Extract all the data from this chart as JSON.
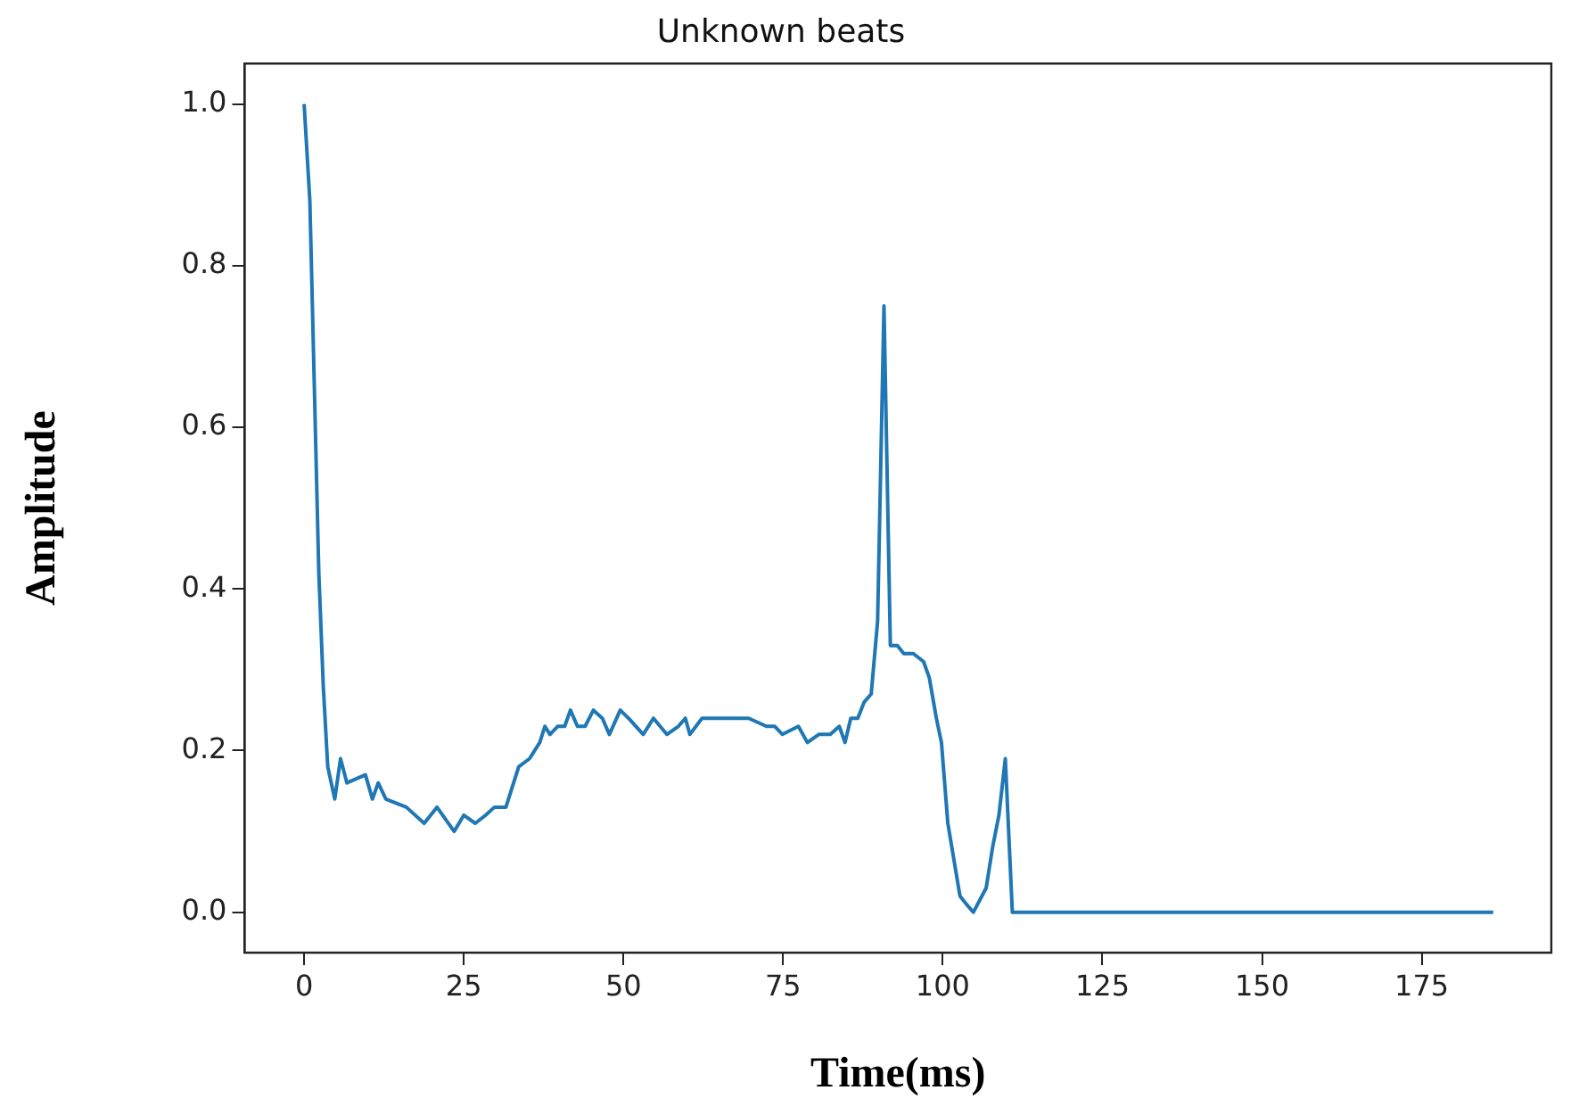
{
  "chart_data": {
    "type": "line",
    "title": "Unknown beats",
    "xlabel": "Time(ms)",
    "ylabel": "Amplitude",
    "x": [
      0,
      0.9,
      2.3,
      3.0,
      3.7,
      4.8,
      5.7,
      6.7,
      9.6,
      10.7,
      11.6,
      12.8,
      16.0,
      18.8,
      20.8,
      23.5,
      25.0,
      26.8,
      28.4,
      29.8,
      31.6,
      33.6,
      35.3,
      36.9,
      37.7,
      38.5,
      39.7,
      40.8,
      41.7,
      42.8,
      44.0,
      45.3,
      46.7,
      47.8,
      49.5,
      50.8,
      53.1,
      54.7,
      56.8,
      58.6,
      59.7,
      60.4,
      62.3,
      64.6,
      65.9,
      69.6,
      72.4,
      73.7,
      74.9,
      77.4,
      78.8,
      80.6,
      82.4,
      83.8,
      84.7,
      85.6,
      86.7,
      87.7,
      88.8,
      89.8,
      90.8,
      91.8,
      92.9,
      93.9,
      95.4,
      97.0,
      97.9,
      99.0,
      99.8,
      100.8,
      102.7,
      103.7,
      104.8,
      106.8,
      107.8,
      108.8,
      109.8,
      110.9,
      186.2
    ],
    "series": [
      {
        "color": "#1f77b4",
        "values": [
          1.0,
          0.88,
          0.42,
          0.28,
          0.18,
          0.14,
          0.19,
          0.16,
          0.17,
          0.14,
          0.16,
          0.14,
          0.13,
          0.11,
          0.13,
          0.1,
          0.12,
          0.11,
          0.12,
          0.13,
          0.13,
          0.18,
          0.19,
          0.21,
          0.23,
          0.22,
          0.23,
          0.23,
          0.25,
          0.23,
          0.23,
          0.25,
          0.24,
          0.22,
          0.25,
          0.24,
          0.22,
          0.24,
          0.22,
          0.23,
          0.24,
          0.22,
          0.24,
          0.24,
          0.24,
          0.24,
          0.23,
          0.23,
          0.22,
          0.23,
          0.21,
          0.22,
          0.22,
          0.23,
          0.21,
          0.24,
          0.24,
          0.26,
          0.27,
          0.36,
          0.75,
          0.33,
          0.33,
          0.32,
          0.32,
          0.31,
          0.29,
          0.24,
          0.21,
          0.11,
          0.02,
          0.01,
          0.0,
          0.03,
          0.08,
          0.12,
          0.19,
          0.0,
          0.0
        ]
      }
    ],
    "xlim": [
      -9.3,
      195.3
    ],
    "ylim": [
      -0.05,
      1.05
    ],
    "xticks": [
      0,
      25,
      50,
      75,
      100,
      125,
      150,
      175
    ],
    "yticks": [
      {
        "value": 0,
        "label": "0.0"
      },
      {
        "value": 0.2,
        "label": "0.2"
      },
      {
        "value": 0.4,
        "label": "0.4"
      },
      {
        "value": 0.6,
        "label": "0.6"
      },
      {
        "value": 0.8,
        "label": "0.8"
      },
      {
        "value": 1,
        "label": "1.0"
      }
    ],
    "grid": false,
    "legend": false,
    "marker": "none",
    "line_style": "solid"
  }
}
